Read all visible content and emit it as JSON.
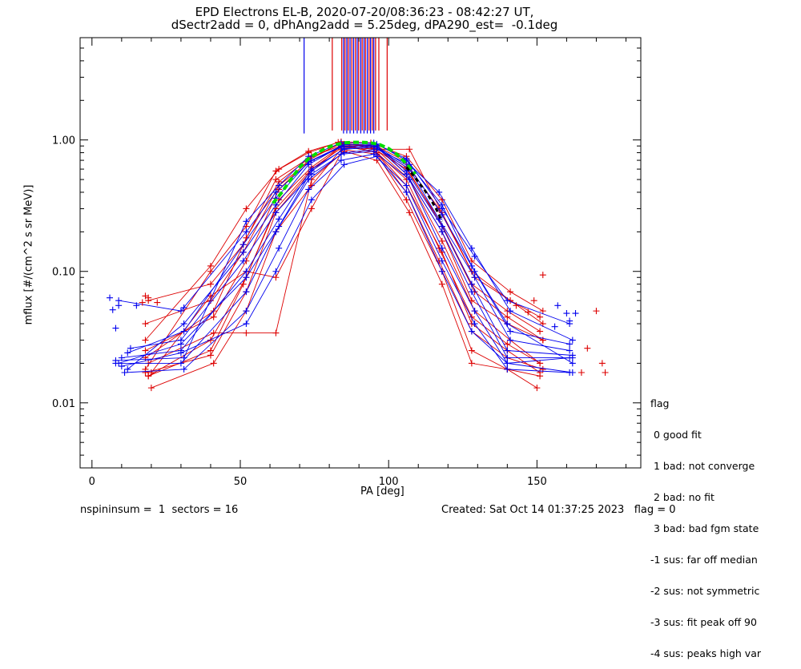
{
  "chart_data": {
    "type": "scatter",
    "title_lines": [
      "EPD Electrons EL-B, 2020-07-20/08:36:23 - 08:42:27 UT,",
      "dSectr2add = 0, dPhAng2add = 5.25deg, dPA290_est=  -0.1deg"
    ],
    "xlabel": "PA [deg]",
    "ylabel": "mflux [#/(cm^2 s sr MeV)]",
    "xlim": [
      -4,
      185
    ],
    "ylim_log": [
      0.0032,
      6.0
    ],
    "y_scale": "log",
    "x_ticks": [
      0,
      50,
      100,
      150
    ],
    "y_ticks": [
      {
        "value": 0.01,
        "label": "0.01"
      },
      {
        "value": 0.1,
        "label": "0.10"
      },
      {
        "value": 1.0,
        "label": "1.00"
      }
    ],
    "series_colors": {
      "red": "#dd0000",
      "blue": "#0000ee",
      "green_fit": "#00dd00",
      "black_fit": "#000000"
    },
    "vertical_lines": {
      "y_top": 6.0,
      "blue": {
        "y_bottom": 1.12,
        "x": [
          71.5,
          84.8,
          85.9,
          87.0,
          88.2,
          89.4,
          90.6,
          91.7,
          92.8,
          93.9,
          95.0
        ]
      },
      "red": {
        "y_bottom": 1.18,
        "x": [
          81.0,
          84.2,
          85.3,
          86.4,
          87.6,
          88.8,
          89.9,
          91.1,
          92.2,
          93.4,
          94.5,
          95.6,
          96.7,
          99.5
        ]
      }
    },
    "fit_green": {
      "x": [
        61,
        64,
        67,
        70,
        73,
        76,
        79,
        82,
        85,
        88,
        91,
        94,
        97,
        100,
        103,
        106,
        109
      ],
      "y": [
        0.33,
        0.4,
        0.5,
        0.62,
        0.72,
        0.8,
        0.87,
        0.92,
        0.95,
        0.96,
        0.96,
        0.95,
        0.92,
        0.86,
        0.77,
        0.66,
        0.55
      ]
    },
    "fit_black": {
      "x": [
        106,
        108,
        110,
        112,
        114,
        116,
        118
      ],
      "y": [
        0.62,
        0.55,
        0.48,
        0.42,
        0.36,
        0.3,
        0.24
      ]
    },
    "traces_red": [
      {
        "x": [
          18,
          40,
          52,
          62,
          73,
          84,
          95,
          106,
          118,
          128,
          140,
          151
        ],
        "y": [
          0.017,
          0.023,
          0.07,
          0.28,
          0.55,
          0.9,
          0.85,
          0.45,
          0.14,
          0.04,
          0.025,
          0.017
        ]
      },
      {
        "x": [
          19,
          40,
          52,
          63,
          74,
          85,
          96,
          106,
          117,
          128,
          140,
          152
        ],
        "y": [
          0.016,
          0.03,
          0.09,
          0.35,
          0.62,
          0.93,
          0.8,
          0.4,
          0.12,
          0.035,
          0.022,
          0.018
        ]
      },
      {
        "x": [
          18,
          41,
          52,
          63,
          73,
          84,
          95,
          107,
          118,
          129,
          141,
          151
        ],
        "y": [
          0.025,
          0.045,
          0.12,
          0.42,
          0.7,
          0.95,
          0.88,
          0.5,
          0.17,
          0.05,
          0.03,
          0.02
        ]
      },
      {
        "x": [
          19,
          40,
          51,
          62,
          74,
          85,
          96,
          106,
          118,
          128,
          140,
          152
        ],
        "y": [
          0.06,
          0.08,
          0.16,
          0.5,
          0.75,
          0.92,
          0.9,
          0.55,
          0.2,
          0.06,
          0.04,
          0.03
        ]
      },
      {
        "x": [
          18,
          40,
          52,
          62,
          73,
          83,
          95,
          106,
          117,
          128,
          140,
          151
        ],
        "y": [
          0.018,
          0.1,
          0.22,
          0.58,
          0.8,
          0.96,
          0.86,
          0.6,
          0.25,
          0.08,
          0.05,
          0.035
        ]
      },
      {
        "x": [
          20,
          41,
          52,
          62,
          74,
          84,
          96,
          106,
          118,
          128,
          140,
          150
        ],
        "y": [
          0.013,
          0.02,
          0.05,
          0.2,
          0.45,
          0.85,
          0.78,
          0.35,
          0.1,
          0.025,
          0.018,
          0.013
        ]
      },
      {
        "x": [
          18,
          40,
          51,
          63,
          73,
          84,
          95,
          105,
          117,
          129,
          141,
          152
        ],
        "y": [
          0.04,
          0.06,
          0.14,
          0.45,
          0.68,
          0.88,
          0.92,
          0.7,
          0.3,
          0.09,
          0.06,
          0.04
        ]
      },
      {
        "x": [
          19,
          41,
          52,
          62,
          74,
          85,
          96,
          107,
          118,
          128,
          140,
          151
        ],
        "y": [
          0.02,
          0.034,
          0.034,
          0.034,
          0.5,
          0.82,
          0.7,
          0.28,
          0.08,
          0.02,
          0.018,
          0.016
        ]
      },
      {
        "x": [
          18,
          40,
          52,
          63,
          73,
          84,
          94,
          106,
          118,
          128,
          141,
          152
        ],
        "y": [
          0.03,
          0.11,
          0.3,
          0.6,
          0.82,
          0.97,
          0.95,
          0.75,
          0.35,
          0.12,
          0.07,
          0.05
        ]
      },
      {
        "x": [
          19,
          40,
          51,
          62,
          74,
          85,
          96,
          106,
          117,
          128,
          140,
          151
        ],
        "y": [
          0.016,
          0.025,
          0.08,
          0.3,
          0.6,
          0.9,
          0.8,
          0.5,
          0.15,
          0.045,
          0.028,
          0.02
        ]
      },
      {
        "x": [
          18,
          41,
          52,
          63,
          73,
          84,
          95,
          106,
          118,
          129,
          140,
          152
        ],
        "y": [
          0.022,
          0.05,
          0.18,
          0.48,
          0.72,
          0.94,
          0.9,
          0.62,
          0.22,
          0.07,
          0.045,
          0.03
        ]
      },
      {
        "x": [
          20,
          40,
          52,
          62,
          74,
          85,
          96,
          107,
          118,
          128,
          141,
          151
        ],
        "y": [
          0.017,
          0.065,
          0.1,
          0.09,
          0.3,
          0.88,
          0.85,
          0.85,
          0.28,
          0.1,
          0.06,
          0.045
        ]
      }
    ],
    "traces_blue": [
      {
        "x": [
          8,
          30,
          52,
          62,
          73,
          84,
          95,
          107,
          118,
          129,
          140,
          161
        ],
        "y": [
          0.02,
          0.02,
          0.07,
          0.2,
          0.5,
          0.78,
          0.82,
          0.5,
          0.15,
          0.05,
          0.02,
          0.022
        ]
      },
      {
        "x": [
          10,
          30,
          52,
          63,
          74,
          85,
          96,
          106,
          118,
          128,
          140,
          162
        ],
        "y": [
          0.022,
          0.025,
          0.1,
          0.25,
          0.6,
          0.85,
          0.88,
          0.55,
          0.2,
          0.07,
          0.022,
          0.022
        ]
      },
      {
        "x": [
          12,
          31,
          51,
          62,
          73,
          84,
          95,
          107,
          117,
          129,
          141,
          161
        ],
        "y": [
          0.018,
          0.04,
          0.14,
          0.32,
          0.65,
          0.9,
          0.9,
          0.6,
          0.25,
          0.09,
          0.03,
          0.025
        ]
      },
      {
        "x": [
          9,
          30,
          52,
          62,
          74,
          85,
          96,
          106,
          118,
          128,
          140,
          162
        ],
        "y": [
          0.06,
          0.05,
          0.2,
          0.4,
          0.7,
          0.92,
          0.93,
          0.7,
          0.32,
          0.11,
          0.04,
          0.02
        ]
      },
      {
        "x": [
          11,
          31,
          52,
          63,
          73,
          84,
          95,
          106,
          118,
          129,
          140,
          161
        ],
        "y": [
          0.017,
          0.018,
          0.05,
          0.15,
          0.42,
          0.7,
          0.78,
          0.45,
          0.12,
          0.04,
          0.018,
          0.017
        ]
      },
      {
        "x": [
          13,
          30,
          51,
          62,
          74,
          85,
          96,
          107,
          117,
          128,
          141,
          162
        ],
        "y": [
          0.026,
          0.03,
          0.12,
          0.28,
          0.55,
          0.8,
          0.85,
          0.65,
          0.4,
          0.15,
          0.05,
          0.03
        ]
      },
      {
        "x": [
          8,
          31,
          52,
          63,
          73,
          84,
          95,
          106,
          118,
          129,
          140,
          161
        ],
        "y": [
          0.021,
          0.022,
          0.24,
          0.45,
          0.75,
          0.95,
          0.95,
          0.72,
          0.3,
          0.13,
          0.06,
          0.04
        ]
      },
      {
        "x": [
          10,
          30,
          52,
          62,
          74,
          85,
          96,
          106,
          118,
          128,
          140,
          162
        ],
        "y": [
          0.019,
          0.024,
          0.04,
          0.1,
          0.35,
          0.65,
          0.75,
          0.4,
          0.1,
          0.035,
          0.02,
          0.017
        ]
      },
      {
        "x": [
          12,
          31,
          51,
          62,
          73,
          84,
          95,
          107,
          118,
          129,
          141,
          161
        ],
        "y": [
          0.024,
          0.035,
          0.16,
          0.36,
          0.68,
          0.88,
          0.92,
          0.62,
          0.27,
          0.1,
          0.035,
          0.028
        ]
      },
      {
        "x": [
          9,
          30,
          52,
          63,
          74,
          85,
          96,
          106,
          118,
          128,
          140,
          162
        ],
        "y": [
          0.02,
          0.028,
          0.09,
          0.22,
          0.58,
          0.86,
          0.9,
          0.58,
          0.22,
          0.08,
          0.025,
          0.023
        ]
      }
    ],
    "outliers_red": {
      "x": [
        18,
        19,
        17,
        22,
        170,
        167,
        172,
        173,
        165,
        152,
        147,
        143,
        149
      ],
      "y": [
        0.065,
        0.063,
        0.058,
        0.058,
        0.05,
        0.026,
        0.02,
        0.017,
        0.017,
        0.094,
        0.049,
        0.055,
        0.06
      ]
    },
    "outliers_blue": {
      "x": [
        6,
        7,
        8,
        9,
        15,
        31,
        157,
        160,
        163,
        161,
        156
      ],
      "y": [
        0.063,
        0.051,
        0.037,
        0.055,
        0.055,
        0.053,
        0.055,
        0.048,
        0.048,
        0.042,
        0.038
      ]
    }
  },
  "legend": {
    "title": "flag",
    "items": [
      " 0 good fit",
      " 1 bad: not converge",
      " 2 bad: no fit",
      " 3 bad: bad fgm state",
      "-1 sus: far off median",
      "-2 sus: not symmetric",
      "-3 sus: fit peak off 90",
      "-4 sus: peaks high var"
    ]
  },
  "footer": {
    "left": "nspininsum =  1  sectors = 16",
    "right": "Created: Sat Oct 14 01:37:25 2023   flag = 0"
  }
}
